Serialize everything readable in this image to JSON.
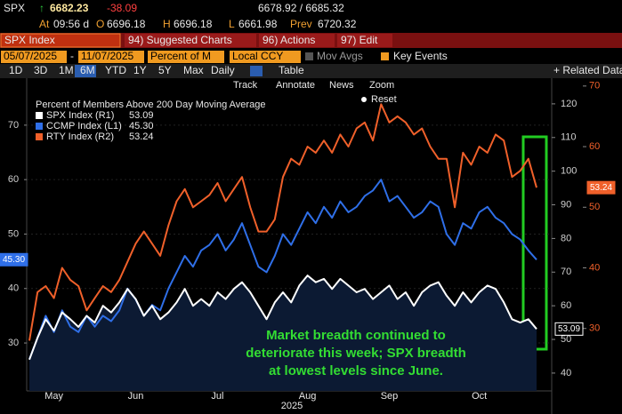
{
  "screen": {
    "quote": {
      "ticker": "SPX",
      "arrow": "↑",
      "last": "6682.23",
      "change": "-38.09",
      "bid_ask": "6678.92 / 6685.32",
      "time_label": "At",
      "time": "09:56 d",
      "open_label": "O",
      "open": "6696.18",
      "high_label": "H",
      "high": "6696.18",
      "low_label": "L",
      "low": "6661.98",
      "prev_label": "Prev",
      "prev": "6720.32"
    },
    "toolbar": {
      "security": "SPX Index",
      "buttons": [
        "94) Suggested Charts",
        "96) Actions",
        "97) Edit"
      ]
    },
    "settings": {
      "date_from": "05/07/2025",
      "date_sep": "-",
      "date_to": "11/07/2025",
      "field": "Percent of M",
      "currency": "Local CCY",
      "mov_avgs": "Mov Avgs",
      "key_events": "Key Events"
    },
    "periods": [
      "1D",
      "3D",
      "1M",
      "6M",
      "YTD",
      "1Y",
      "5Y",
      "Max"
    ],
    "frequency": "Daily",
    "table": "Table",
    "related": "+ Related Data",
    "chart_tools": [
      "Track",
      "Annotate",
      "News",
      "Zoom",
      "Reset"
    ]
  },
  "chart_data": {
    "type": "line",
    "title": "Percent of Members Above 200 Day Moving Average",
    "x_label": "2025",
    "annotation": [
      "Market breadth continued to",
      "deteriorate this week;  SPX breadth",
      "at lowest levels since June."
    ],
    "categories": [
      null,
      null,
      null,
      "May",
      null,
      null,
      null,
      null,
      null,
      null,
      null,
      null,
      null,
      "Jun",
      null,
      null,
      null,
      null,
      null,
      null,
      null,
      null,
      null,
      "Jul",
      null,
      null,
      null,
      null,
      null,
      null,
      null,
      null,
      null,
      null,
      "Aug",
      null,
      null,
      null,
      null,
      null,
      null,
      null,
      null,
      null,
      "Sep",
      null,
      null,
      null,
      null,
      null,
      null,
      null,
      null,
      null,
      null,
      "Oct",
      null,
      null,
      null,
      null,
      null,
      null,
      null
    ],
    "ylim": [
      21.2,
      78.3
    ],
    "yticks": [
      30,
      40,
      50,
      60,
      70
    ],
    "y2lim": [
      34.7,
      127.1
    ],
    "y2ticks": [
      40,
      50,
      60,
      70,
      80,
      90,
      100,
      110,
      120
    ],
    "y3lim": [
      19.7,
      71.0
    ],
    "y3ticks": [
      30,
      40,
      50,
      60,
      70
    ],
    "grid": true,
    "series": [
      {
        "name": "SPX Index (R1)",
        "color": "#ffffff",
        "axis": "y2",
        "fill": "#0c1a33",
        "values": [
          44,
          50.5,
          56,
          52.6,
          58,
          56,
          53.7,
          57,
          55,
          60,
          58,
          61,
          65,
          62,
          57,
          60,
          56,
          58,
          61,
          65,
          60,
          62,
          60,
          64,
          62,
          65,
          67,
          64,
          60,
          56,
          61,
          64,
          61,
          66,
          69,
          67,
          68,
          65,
          68,
          66,
          64,
          65,
          62,
          64,
          66,
          62,
          64,
          60,
          64,
          66,
          67,
          63,
          60,
          64,
          61,
          64,
          66,
          65,
          61,
          56,
          55,
          56,
          53.09
        ]
      },
      {
        "name": "CCMP Index (L1)",
        "color": "#2f6fe8",
        "axis": "y",
        "values": [
          27,
          31,
          35,
          32,
          36,
          33,
          32,
          35,
          33,
          35,
          34,
          36,
          40,
          38,
          35,
          37,
          36,
          40,
          43,
          46,
          44,
          47,
          48,
          50,
          47,
          49,
          52,
          48,
          44,
          43,
          46,
          50,
          48,
          51,
          54,
          52,
          55,
          53,
          56,
          54,
          55,
          57,
          58,
          60,
          56,
          57,
          55,
          53,
          54,
          56,
          55,
          50,
          48,
          52,
          51,
          54,
          55,
          53,
          52,
          50,
          49,
          47,
          45.3
        ],
        "value_labels": [
          null,
          null,
          null,
          null,
          null,
          null,
          null,
          null,
          null,
          null,
          null,
          null,
          null,
          null,
          null,
          null,
          null,
          null,
          null,
          null,
          null,
          null,
          null,
          null,
          null,
          null,
          null,
          null,
          null,
          null,
          null,
          null,
          null,
          null,
          null,
          null,
          null,
          null,
          null,
          null,
          null,
          null,
          null,
          null,
          null,
          null,
          null,
          null,
          null,
          null,
          null,
          null,
          null,
          null,
          null,
          null,
          null,
          null,
          null,
          null,
          null,
          null,
          "45.30"
        ]
      },
      {
        "name": "RTY Index (R2)",
        "color": "#f0602a",
        "axis": "y3",
        "values": [
          28,
          36,
          37,
          35,
          40,
          38,
          37,
          33,
          35,
          37,
          36,
          38,
          41,
          44,
          46,
          44,
          42,
          47,
          51,
          53,
          50,
          51,
          52,
          54,
          51,
          53,
          55,
          50,
          46,
          46,
          48,
          55,
          58,
          57,
          60,
          59,
          61,
          59,
          62,
          60,
          63,
          64,
          61,
          67,
          64,
          65,
          64,
          62,
          63,
          60,
          58,
          58,
          50,
          59,
          57,
          60,
          59,
          62,
          61,
          55,
          56,
          58,
          53.24
        ]
      }
    ]
  }
}
